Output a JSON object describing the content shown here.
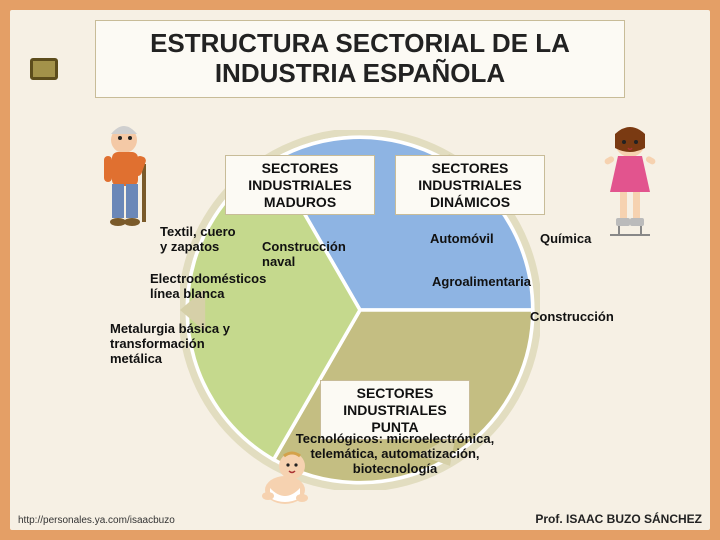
{
  "page": {
    "background_outer": "#e49f66",
    "background_inner": "#f6f0e4",
    "box_bg": "#fcfaf4",
    "box_border": "#c8bc98"
  },
  "title": "ESTRUCTURA SECTORIAL DE LA INDUSTRIA ESPAÑOLA",
  "chart": {
    "type": "pie-3-sector",
    "sectors": [
      {
        "id": "maduros",
        "color": "#c5d98d",
        "start_deg": 210,
        "end_deg": 330
      },
      {
        "id": "dinamicos",
        "color": "#8eb4e3",
        "start_deg": 330,
        "end_deg": 90
      },
      {
        "id": "punta",
        "color": "#c4be82",
        "start_deg": 90,
        "end_deg": 210
      }
    ],
    "rim_color": "#6b6147",
    "arrow_fill": "#d6d0a8"
  },
  "boxes": {
    "maduros": "SECTORES\nINDUSTRIALES\nMADUROS",
    "dinamicos": "SECTORES\nINDUSTRIALES\nDINÁMICOS",
    "punta": "SECTORES\nINDUSTRIALES\nPUNTA"
  },
  "labels": {
    "textil": "Textil, cuero\ny zapatos",
    "construccion_naval": "Construcción\nnaval",
    "electrodom": "Electrodomésticos\nlínea blanca",
    "metalurgia": "Metalurgia básica y\ntransformación\nmetálica",
    "automovil": "Automóvil",
    "quimica": "Química",
    "agroalimentaria": "Agroalimentaria",
    "construccion": "Construcción",
    "tecnologicos": "Tecnológicos: microelectrónica,\ntelemática, automatización,\nbiotecnología"
  },
  "footer": {
    "url": "http://personales.ya.com/isaacbuzo",
    "author": "Prof. ISAAC BUZO SÁNCHEZ"
  },
  "characters": {
    "oldman_colors": {
      "shirt": "#e07030",
      "pants": "#6a87b8",
      "skin": "#f4c9a6",
      "hair": "#cfcfcf",
      "cane": "#7a5a2a"
    },
    "girl_colors": {
      "dress": "#e2548e",
      "hair": "#7a3a12",
      "skin": "#f6d2b0",
      "skate": "#bbbbbb"
    },
    "baby_colors": {
      "skin": "#f6d2b0",
      "diaper": "#ffffff",
      "hair": "#d4a24a"
    }
  }
}
